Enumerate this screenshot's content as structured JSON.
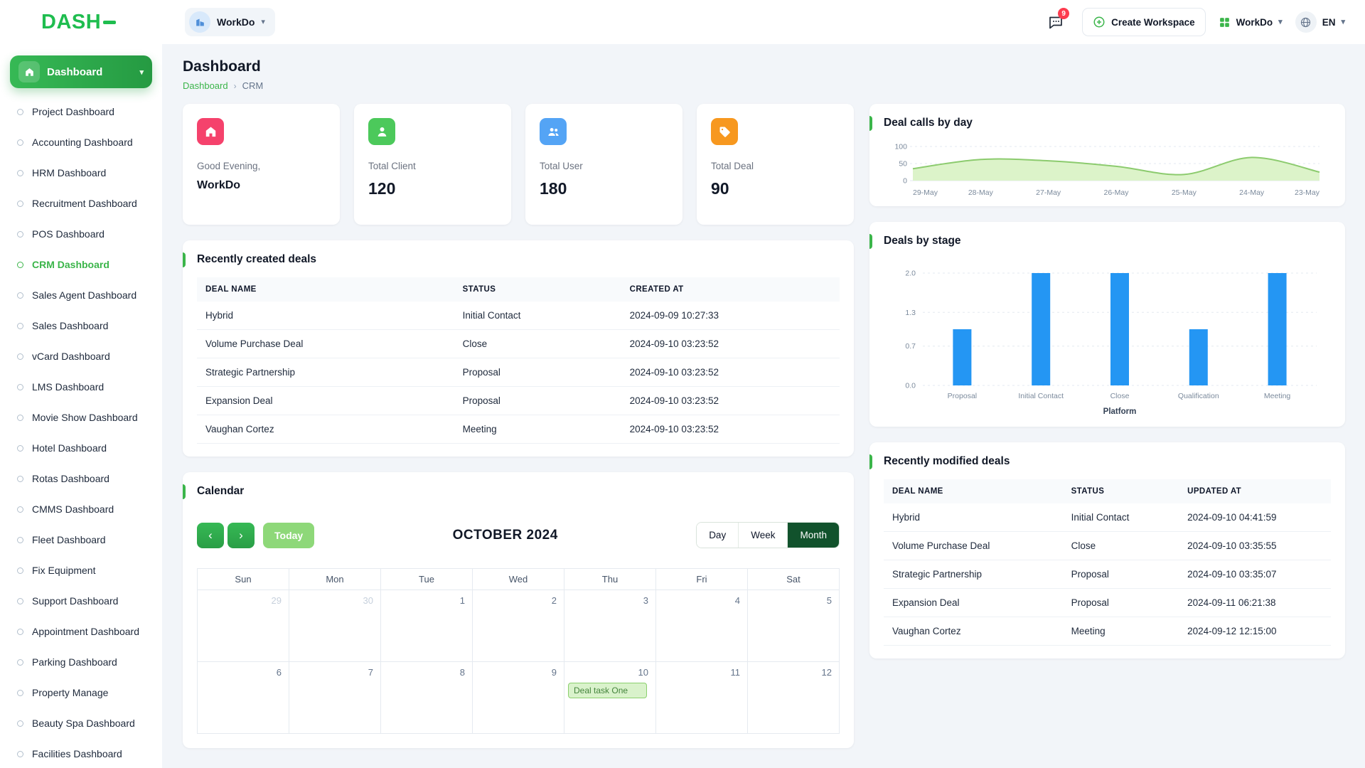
{
  "icons": {
    "chevron_down": "▾",
    "chevron_left": "‹",
    "chevron_right": "›",
    "breadcrumb_separator": "›"
  },
  "colors": {
    "primary_green": "#3bb54a",
    "logo_green": "#1fbd4f",
    "stat_home": "#f5426c",
    "stat_client": "#4cc95b",
    "stat_user": "#54a4f5",
    "stat_deal": "#f7981f",
    "bar_blue": "#2496f3",
    "area_line": "#8ccb6e",
    "area_fill": "#dcf3c9",
    "badge_red": "#fd3c4f",
    "month_active_green": "#11522c",
    "today_green": "#8ed879"
  },
  "header": {
    "logo": "DASH",
    "workspace_label": "WorkDo",
    "messages_badge": "9",
    "create_workspace_label": "Create Workspace",
    "workspace_menu_label": "WorkDo",
    "language_label": "EN"
  },
  "sidebar": {
    "active_label": "Dashboard",
    "items": [
      {
        "label": "Project Dashboard",
        "active": false
      },
      {
        "label": "Accounting Dashboard",
        "active": false
      },
      {
        "label": "HRM Dashboard",
        "active": false
      },
      {
        "label": "Recruitment Dashboard",
        "active": false
      },
      {
        "label": "POS Dashboard",
        "active": false
      },
      {
        "label": "CRM Dashboard",
        "active": true
      },
      {
        "label": "Sales Agent Dashboard",
        "active": false
      },
      {
        "label": "Sales Dashboard",
        "active": false
      },
      {
        "label": "vCard Dashboard",
        "active": false
      },
      {
        "label": "LMS Dashboard",
        "active": false
      },
      {
        "label": "Movie Show Dashboard",
        "active": false
      },
      {
        "label": "Hotel Dashboard",
        "active": false
      },
      {
        "label": "Rotas Dashboard",
        "active": false
      },
      {
        "label": "CMMS Dashboard",
        "active": false
      },
      {
        "label": "Fleet Dashboard",
        "active": false
      },
      {
        "label": "Fix Equipment",
        "active": false
      },
      {
        "label": "Support Dashboard",
        "active": false
      },
      {
        "label": "Appointment Dashboard",
        "active": false
      },
      {
        "label": "Parking Dashboard",
        "active": false
      },
      {
        "label": "Property Manage",
        "active": false
      },
      {
        "label": "Beauty Spa Dashboard",
        "active": false
      },
      {
        "label": "Facilities Dashboard",
        "active": false
      }
    ]
  },
  "page": {
    "title": "Dashboard",
    "breadcrumb_link": "Dashboard",
    "breadcrumb_current": "CRM"
  },
  "stats": [
    {
      "label": "Good Evening,",
      "value": "WorkDo",
      "icon": "home-icon"
    },
    {
      "label": "Total Client",
      "value": "120",
      "icon": "user-icon"
    },
    {
      "label": "Total User",
      "value": "180",
      "icon": "users-icon"
    },
    {
      "label": "Total Deal",
      "value": "90",
      "icon": "tag-icon"
    }
  ],
  "recent_created": {
    "title": "Recently created deals",
    "columns": [
      "DEAL NAME",
      "STATUS",
      "CREATED AT"
    ],
    "rows": [
      {
        "name": "Hybrid",
        "status": "Initial Contact",
        "date": "2024-09-09 10:27:33"
      },
      {
        "name": "Volume Purchase Deal",
        "status": "Close",
        "date": "2024-09-10 03:23:52"
      },
      {
        "name": "Strategic Partnership",
        "status": "Proposal",
        "date": "2024-09-10 03:23:52"
      },
      {
        "name": "Expansion Deal",
        "status": "Proposal",
        "date": "2024-09-10 03:23:52"
      },
      {
        "name": "Vaughan Cortez",
        "status": "Meeting",
        "date": "2024-09-10 03:23:52"
      }
    ]
  },
  "recent_modified": {
    "title": "Recently modified deals",
    "columns": [
      "DEAL NAME",
      "STATUS",
      "UPDATED AT"
    ],
    "rows": [
      {
        "name": "Hybrid",
        "status": "Initial Contact",
        "date": "2024-09-10 04:41:59"
      },
      {
        "name": "Volume Purchase Deal",
        "status": "Close",
        "date": "2024-09-10 03:35:55"
      },
      {
        "name": "Strategic Partnership",
        "status": "Proposal",
        "date": "2024-09-10 03:35:07"
      },
      {
        "name": "Expansion Deal",
        "status": "Proposal",
        "date": "2024-09-11 06:21:38"
      },
      {
        "name": "Vaughan Cortez",
        "status": "Meeting",
        "date": "2024-09-12 12:15:00"
      }
    ]
  },
  "calendar": {
    "title": "Calendar",
    "today_label": "Today",
    "month_title": "OCTOBER 2024",
    "views": [
      "Day",
      "Week",
      "Month"
    ],
    "active_view": "Month",
    "weekdays": [
      "Sun",
      "Mon",
      "Tue",
      "Wed",
      "Thu",
      "Fri",
      "Sat"
    ],
    "weeks": [
      [
        {
          "day": "29",
          "muted": true
        },
        {
          "day": "30",
          "muted": true
        },
        {
          "day": "1",
          "muted": false
        },
        {
          "day": "2",
          "muted": false
        },
        {
          "day": "3",
          "muted": false
        },
        {
          "day": "4",
          "muted": false
        },
        {
          "day": "5",
          "muted": false
        }
      ],
      [
        {
          "day": "6",
          "muted": false
        },
        {
          "day": "7",
          "muted": false
        },
        {
          "day": "8",
          "muted": false
        },
        {
          "day": "9",
          "muted": false
        },
        {
          "day": "10",
          "muted": false,
          "event": "Deal task One"
        },
        {
          "day": "11",
          "muted": false
        },
        {
          "day": "12",
          "muted": false
        }
      ]
    ]
  },
  "chart_data": [
    {
      "type": "area",
      "title": "Deal calls by day",
      "categories": [
        "29-May",
        "28-May",
        "27-May",
        "26-May",
        "25-May",
        "24-May",
        "23-May"
      ],
      "values": [
        35,
        62,
        58,
        42,
        18,
        68,
        25
      ],
      "ylim": [
        0,
        100
      ],
      "yticks": [
        0,
        50,
        100
      ],
      "grid": true,
      "legend": "none"
    },
    {
      "type": "bar",
      "title": "Deals by stage",
      "categories": [
        "Proposal",
        "Initial Contact",
        "Close",
        "Qualification",
        "Meeting"
      ],
      "values": [
        1,
        2,
        2,
        1,
        2
      ],
      "ylim": [
        0,
        2
      ],
      "yticks": [
        0,
        0.7,
        1.3,
        2
      ],
      "xlabel": "Platform",
      "grid": true,
      "legend": "none"
    }
  ]
}
